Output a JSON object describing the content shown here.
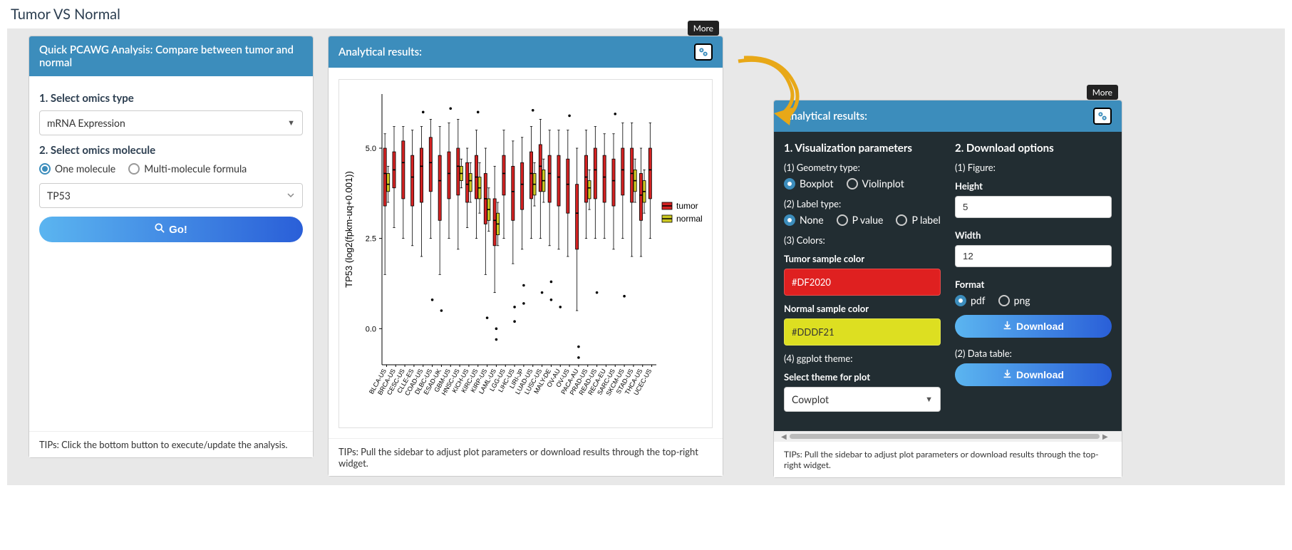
{
  "page_title": "Tumor VS Normal",
  "left_panel": {
    "header": "Quick PCAWG Analysis: Compare between tumor and normal",
    "step1_label": "1. Select omics type",
    "omics_type_value": "mRNA Expression",
    "step2_label": "2. Select omics molecule",
    "molecule_mode_one": "One molecule",
    "molecule_mode_multi": "Multi-molecule formula",
    "molecule_value": "TP53",
    "go_label": "Go!",
    "tip": "TIPs: Click the bottom button to execute/update the analysis."
  },
  "center_panel": {
    "header": "Analytical results:",
    "more_label": "More",
    "tip": "TIPs: Pull the sidebar to adjust plot parameters or download results through the top-right widget.",
    "chart": {
      "type": "boxplot",
      "y_label": "TP53 (log2(fpkm-uq+0.001))",
      "y_ticks": [
        0.0,
        2.5,
        5.0
      ],
      "ylim": [
        -1.0,
        6.5
      ],
      "background_color": "#ffffff",
      "categories": [
        "BLCA-US",
        "BRCA-US",
        "CESC-US",
        "CLLE-ES",
        "COAD-US",
        "DLBC-US",
        "ESAD-UK",
        "GBM-US",
        "HNSC-US",
        "KICH-US",
        "KIRC-US",
        "KIRP-US",
        "LAML-US",
        "LGG-US",
        "LIHC-US",
        "LIRI-JP",
        "LUAD-US",
        "LUSC-US",
        "MALY-DE",
        "OV-AU",
        "OV-US",
        "PACA-AU",
        "PRAD-US",
        "READ-US",
        "RECA-EU",
        "SARC-US",
        "SKCM-US",
        "STAD-US",
        "THCA-US",
        "UCEC-US"
      ],
      "legend": [
        {
          "label": "tumor",
          "color": "#d32222"
        },
        {
          "label": "normal",
          "color": "#ccc822"
        }
      ],
      "tumor_box_color": "#d32222",
      "normal_box_color": "#ccc822",
      "boxes": [
        {
          "cat": 0,
          "series": "tumor",
          "q1": 3.4,
          "med": 4.3,
          "q3": 5.0,
          "wl": 1.5,
          "wh": 5.4
        },
        {
          "cat": 0,
          "series": "normal",
          "q1": 3.8,
          "med": 4.0,
          "q3": 4.3,
          "wl": 3.5,
          "wh": 4.5
        },
        {
          "cat": 1,
          "series": "tumor",
          "q1": 3.9,
          "med": 4.4,
          "q3": 4.9,
          "wl": 2.8,
          "wh": 5.6
        },
        {
          "cat": 2,
          "series": "tumor",
          "q1": 3.6,
          "med": 4.6,
          "q3": 5.2,
          "wl": 2.5,
          "wh": 5.6
        },
        {
          "cat": 3,
          "series": "tumor",
          "q1": 3.4,
          "med": 4.2,
          "q3": 4.8,
          "wl": 2.3,
          "wh": 5.5
        },
        {
          "cat": 4,
          "series": "tumor",
          "q1": 3.5,
          "med": 4.5,
          "q3": 5.0,
          "wl": 2.0,
          "wh": 5.6
        },
        {
          "cat": 5,
          "series": "tumor",
          "q1": 3.8,
          "med": 4.6,
          "q3": 5.3,
          "wl": 2.5,
          "wh": 5.8
        },
        {
          "cat": 6,
          "series": "tumor",
          "q1": 3.0,
          "med": 4.1,
          "q3": 4.8,
          "wl": 1.5,
          "wh": 5.6
        },
        {
          "cat": 7,
          "series": "tumor",
          "q1": 3.6,
          "med": 4.3,
          "q3": 4.9,
          "wl": 2.5,
          "wh": 5.7
        },
        {
          "cat": 8,
          "series": "tumor",
          "q1": 3.7,
          "med": 4.5,
          "q3": 5.0,
          "wl": 2.2,
          "wh": 5.8
        },
        {
          "cat": 8,
          "series": "normal",
          "q1": 4.1,
          "med": 4.3,
          "q3": 4.5,
          "wl": 3.9,
          "wh": 4.7
        },
        {
          "cat": 9,
          "series": "tumor",
          "q1": 3.5,
          "med": 4.0,
          "q3": 4.6,
          "wl": 2.8,
          "wh": 5.0
        },
        {
          "cat": 9,
          "series": "normal",
          "q1": 3.8,
          "med": 4.1,
          "q3": 4.3,
          "wl": 3.5,
          "wh": 4.6
        },
        {
          "cat": 10,
          "series": "tumor",
          "q1": 3.6,
          "med": 4.2,
          "q3": 4.8,
          "wl": 2.5,
          "wh": 5.5
        },
        {
          "cat": 10,
          "series": "normal",
          "q1": 3.6,
          "med": 3.9,
          "q3": 4.2,
          "wl": 3.2,
          "wh": 4.6
        },
        {
          "cat": 11,
          "series": "tumor",
          "q1": 2.9,
          "med": 3.6,
          "q3": 4.3,
          "wl": 1.5,
          "wh": 5.0
        },
        {
          "cat": 11,
          "series": "normal",
          "q1": 3.0,
          "med": 3.3,
          "q3": 3.6,
          "wl": 2.7,
          "wh": 3.9
        },
        {
          "cat": 12,
          "series": "tumor",
          "q1": 2.3,
          "med": 3.0,
          "q3": 3.6,
          "wl": 1.0,
          "wh": 4.5
        },
        {
          "cat": 12,
          "series": "normal",
          "q1": 2.6,
          "med": 2.9,
          "q3": 3.2,
          "wl": 2.3,
          "wh": 3.5
        },
        {
          "cat": 13,
          "series": "tumor",
          "q1": 3.7,
          "med": 4.3,
          "q3": 4.8,
          "wl": 2.5,
          "wh": 5.5
        },
        {
          "cat": 14,
          "series": "tumor",
          "q1": 3.0,
          "med": 3.8,
          "q3": 4.5,
          "wl": 1.8,
          "wh": 5.2
        },
        {
          "cat": 15,
          "series": "tumor",
          "q1": 3.3,
          "med": 4.0,
          "q3": 4.6,
          "wl": 2.2,
          "wh": 5.3
        },
        {
          "cat": 16,
          "series": "tumor",
          "q1": 3.6,
          "med": 4.3,
          "q3": 4.9,
          "wl": 2.5,
          "wh": 5.6
        },
        {
          "cat": 16,
          "series": "normal",
          "q1": 3.7,
          "med": 4.0,
          "q3": 4.3,
          "wl": 3.4,
          "wh": 4.6
        },
        {
          "cat": 17,
          "series": "tumor",
          "q1": 3.8,
          "med": 4.5,
          "q3": 5.1,
          "wl": 2.5,
          "wh": 5.8
        },
        {
          "cat": 17,
          "series": "normal",
          "q1": 3.8,
          "med": 4.1,
          "q3": 4.4,
          "wl": 3.5,
          "wh": 4.7
        },
        {
          "cat": 18,
          "series": "tumor",
          "q1": 3.5,
          "med": 4.3,
          "q3": 4.8,
          "wl": 2.3,
          "wh": 5.5
        },
        {
          "cat": 19,
          "series": "tumor",
          "q1": 3.4,
          "med": 4.2,
          "q3": 4.8,
          "wl": 2.2,
          "wh": 5.5
        },
        {
          "cat": 20,
          "series": "tumor",
          "q1": 3.2,
          "med": 4.0,
          "q3": 4.7,
          "wl": 2.0,
          "wh": 5.5
        },
        {
          "cat": 21,
          "series": "tumor",
          "q1": 2.2,
          "med": 3.2,
          "q3": 4.0,
          "wl": 0.5,
          "wh": 5.0
        },
        {
          "cat": 22,
          "series": "tumor",
          "q1": 3.5,
          "med": 4.2,
          "q3": 4.8,
          "wl": 2.5,
          "wh": 5.5
        },
        {
          "cat": 22,
          "series": "normal",
          "q1": 3.6,
          "med": 3.9,
          "q3": 4.1,
          "wl": 3.3,
          "wh": 4.4
        },
        {
          "cat": 23,
          "series": "tumor",
          "q1": 3.6,
          "med": 4.4,
          "q3": 5.0,
          "wl": 2.5,
          "wh": 5.6
        },
        {
          "cat": 24,
          "series": "tumor",
          "q1": 3.5,
          "med": 4.2,
          "q3": 4.8,
          "wl": 2.5,
          "wh": 5.4
        },
        {
          "cat": 25,
          "series": "tumor",
          "q1": 3.4,
          "med": 4.1,
          "q3": 4.7,
          "wl": 2.2,
          "wh": 5.4
        },
        {
          "cat": 26,
          "series": "tumor",
          "q1": 3.7,
          "med": 4.4,
          "q3": 5.0,
          "wl": 2.5,
          "wh": 5.7
        },
        {
          "cat": 27,
          "series": "tumor",
          "q1": 3.5,
          "med": 4.3,
          "q3": 5.0,
          "wl": 2.0,
          "wh": 5.7
        },
        {
          "cat": 27,
          "series": "normal",
          "q1": 3.8,
          "med": 4.1,
          "q3": 4.4,
          "wl": 3.5,
          "wh": 4.7
        },
        {
          "cat": 28,
          "series": "tumor",
          "q1": 3.0,
          "med": 3.7,
          "q3": 4.3,
          "wl": 2.0,
          "wh": 5.0
        },
        {
          "cat": 28,
          "series": "normal",
          "q1": 3.5,
          "med": 3.8,
          "q3": 4.1,
          "wl": 3.2,
          "wh": 4.4
        },
        {
          "cat": 29,
          "series": "tumor",
          "q1": 3.6,
          "med": 4.4,
          "q3": 5.0,
          "wl": 2.5,
          "wh": 5.7
        }
      ],
      "outliers": [
        {
          "cat": 5,
          "y": 0.8
        },
        {
          "cat": 6,
          "y": 0.5
        },
        {
          "cat": 11,
          "y": 0.3
        },
        {
          "cat": 12,
          "y": 0.0
        },
        {
          "cat": 12,
          "y": -0.3
        },
        {
          "cat": 14,
          "y": 0.6
        },
        {
          "cat": 14,
          "y": 0.2
        },
        {
          "cat": 15,
          "y": 0.7
        },
        {
          "cat": 17,
          "y": 1.0
        },
        {
          "cat": 18,
          "y": 0.8
        },
        {
          "cat": 19,
          "y": 0.6
        },
        {
          "cat": 21,
          "y": -0.5
        },
        {
          "cat": 21,
          "y": -0.8
        },
        {
          "cat": 26,
          "y": 0.9
        },
        {
          "cat": 4,
          "y": 6.0
        },
        {
          "cat": 7,
          "y": 6.1
        },
        {
          "cat": 10,
          "y": 6.0
        },
        {
          "cat": 16,
          "y": 6.05
        },
        {
          "cat": 20,
          "y": 5.9
        },
        {
          "cat": 25,
          "y": 5.95
        },
        {
          "cat": 15,
          "y": 1.2
        },
        {
          "cat": 18,
          "y": 1.3
        },
        {
          "cat": 23,
          "y": 1.0
        }
      ]
    }
  },
  "right_panel": {
    "header": "Analytical results:",
    "more_label": "More",
    "viz_title": "1. Visualization parameters",
    "geom_label": "(1) Geometry type:",
    "geom_boxplot": "Boxplot",
    "geom_violin": "Violinplot",
    "label_type_label": "(2) Label type:",
    "label_none": "None",
    "label_pvalue": "P value",
    "label_plabel": "P label",
    "colors_label": "(3) Colors:",
    "tumor_color_label": "Tumor sample color",
    "tumor_color_value": "#DF2020",
    "normal_color_label": "Normal sample color",
    "normal_color_value": "#DDDF21",
    "theme_label": "(4) ggplot theme:",
    "theme_select_label": "Select theme for plot",
    "theme_value": "Cowplot",
    "download_title": "2. Download options",
    "figure_label": "(1) Figure:",
    "height_label": "Height",
    "height_value": "5",
    "width_label": "Width",
    "width_value": "12",
    "format_label": "Format",
    "format_pdf": "pdf",
    "format_png": "png",
    "download_label": "Download",
    "datatable_label": "(2) Data table:",
    "tip": "TIPs: Pull the sidebar to adjust plot parameters or download results through the top-right widget."
  }
}
